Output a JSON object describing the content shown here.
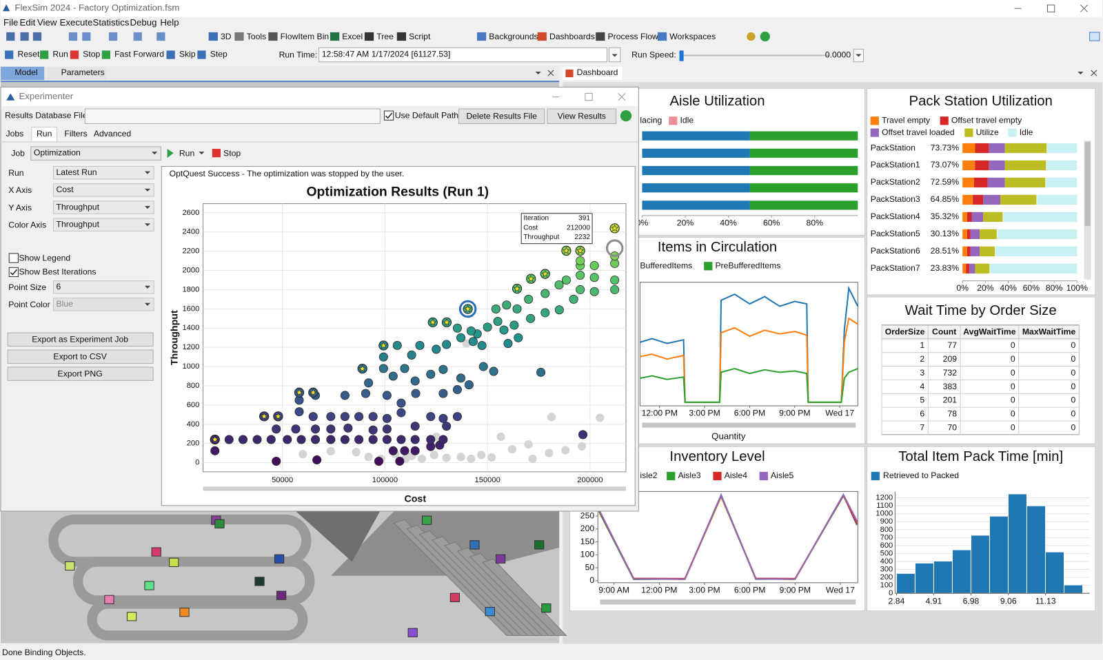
{
  "window": {
    "title": "FlexSim 2024 - Factory Optimization.fsm"
  },
  "menu": [
    "File",
    "Edit",
    "View",
    "Execute",
    "Statistics",
    "Debug",
    "Help"
  ],
  "toolbar": [
    "3D",
    "Tools",
    "FlowItem Bin",
    "Excel",
    "Tree",
    "Script",
    "Backgrounds",
    "Dashboards",
    "Process Flow",
    "Workspaces"
  ],
  "run_bar": {
    "buttons": [
      "Reset",
      "Run",
      "Stop",
      "Fast Forward",
      "Skip",
      "Step"
    ],
    "run_time_label": "Run Time:",
    "run_time": "12:58:47 AM  1/17/2024  [61127.53]",
    "run_speed_label": "Run Speed:",
    "run_speed": "0.0000"
  },
  "view_tabs": [
    "Model",
    "Parameters"
  ],
  "dashboard_tab": "Dashboard",
  "experimenter": {
    "title": "Experimenter",
    "db_label": "Results Database File",
    "use_default_path": {
      "label": "Use Default Path",
      "checked": true
    },
    "delete_button": "Delete Results File",
    "view_button": "View Results",
    "tabs": [
      "Jobs",
      "Run",
      "Filters",
      "Advanced"
    ],
    "job": {
      "label": "Job",
      "value": "Optimization"
    },
    "run": "Run",
    "stop": "Stop",
    "fields": [
      {
        "label": "Run",
        "value": "Latest Run"
      },
      {
        "label": "X Axis",
        "value": "Cost"
      },
      {
        "label": "Y Axis",
        "value": "Throughput"
      },
      {
        "label": "Color Axis",
        "value": "Throughput"
      }
    ],
    "checkboxes": [
      {
        "label": "Show Legend",
        "checked": false
      },
      {
        "label": "Show Best Iterations",
        "checked": true
      }
    ],
    "point_fields": [
      {
        "label": "Point Size",
        "value": "6"
      },
      {
        "label": "Point Color",
        "value": "Blue"
      }
    ],
    "exports": [
      "Export as Experiment Job",
      "Export to CSV",
      "Export PNG"
    ],
    "message": "OptQuest Success - The optimization was stopped by the user."
  },
  "chart_data": [
    {
      "type": "scatter",
      "title": "Optimization Results (Run 1)",
      "x_label": "Cost",
      "y_label": "Throughput",
      "xlim": [
        11300,
        217500
      ],
      "ylim": [
        -95,
        2695
      ],
      "xticks": [
        50000,
        100000,
        150000,
        200000
      ],
      "yticks": [
        0,
        200,
        400,
        600,
        800,
        1000,
        1200,
        1400,
        1600,
        1800,
        2000,
        2200,
        2400,
        2600
      ],
      "grid": true,
      "color_scale": [
        "#440154",
        "#3b528b",
        "#21918c",
        "#5ec962",
        "#fde725"
      ],
      "series": [
        {
          "x": [
            17100,
            47000,
            66800,
            97000,
            107200,
            104000,
            109600,
            114700,
            122300,
            126700,
            24000,
            30800,
            37700,
            44500,
            52400,
            59200,
            66100,
            73600,
            80500,
            87300,
            94200,
            101000,
            107900,
            114700,
            122300,
            128400,
            196500,
            47000,
            56500,
            66100,
            73600,
            82000,
            94200,
            101000,
            114700,
            130000,
            58200,
            65000,
            73600,
            80500,
            87300,
            94200,
            101000,
            107900,
            122300,
            128400,
            135300,
            58200,
            66100,
            80500,
            90600,
            101000,
            107900,
            115000,
            128400,
            135300,
            92000,
            99300,
            104000,
            109600,
            114700,
            122300,
            128400,
            137000,
            141000,
            148000,
            153000,
            176000,
            99300,
            106000,
            113000,
            117000,
            125000,
            130000,
            137000,
            143000,
            147300,
            145000,
            160000,
            135300,
            142000,
            150000,
            158000,
            165000,
            155000,
            163000,
            171000,
            154100,
            159300,
            164400,
            170000,
            178100,
            185000,
            192000,
            178100,
            184900,
            188400,
            195200,
            195200,
            202100,
            202100,
            212000,
            212000,
            195200,
            195200,
            202100,
            212000,
            212000
          ],
          "y": [
            124,
            15,
            29,
            15,
            15,
            124,
            124,
            124,
            168,
            183,
            241,
            241,
            241,
            241,
            241,
            241,
            241,
            241,
            241,
            241,
            241,
            241,
            241,
            241,
            241,
            241,
            292,
            350,
            350,
            350,
            350,
            360,
            340,
            350,
            380,
            380,
            530,
            480,
            480,
            480,
            480,
            480,
            460,
            520,
            480,
            460,
            480,
            650,
            700,
            700,
            720,
            700,
            620,
            720,
            720,
            760,
            830,
            980,
            900,
            980,
            850,
            920,
            970,
            880,
            810,
            1000,
            950,
            940,
            1100,
            1220,
            1120,
            1220,
            1180,
            1230,
            1300,
            1260,
            1219,
            1340,
            1240,
            1400,
            1370,
            1410,
            1380,
            1300,
            1470,
            1430,
            1500,
            1599,
            1640,
            1600,
            1700,
            1560,
            1590,
            1700,
            1760,
            1850,
            1900,
            1800,
            1950,
            1780,
            1927,
            1800,
            1900,
            2050,
            2100,
            2050,
            2073,
            2150
          ]
        },
        {
          "color": "#d4d4d4",
          "x": [
            92000,
            98000,
            105000,
            110000,
            113000,
            118000,
            124000,
            130000,
            137000,
            142000,
            147000,
            152000,
            162000,
            170000,
            172000,
            180000,
            188000,
            196000,
            181200,
            204800,
            139700,
            156500,
            125000,
            73600,
            86000,
            60000
          ],
          "y": [
            60,
            40,
            90,
            40,
            70,
            40,
            80,
            50,
            60,
            40,
            80,
            55,
            140,
            190,
            40,
            100,
            130,
            170,
            475,
            467,
            1241,
            270,
            270,
            120,
            110,
            90
          ]
        }
      ],
      "best": {
        "color": "#f5e829",
        "x": [
          17100,
          41100,
          47900,
          58200,
          65000,
          89000,
          99300,
          123300,
          130100,
          140400,
          164400,
          171200,
          178100,
          188400,
          195200,
          212000
        ],
        "y": [
          241,
          482,
          482,
          730,
          730,
          978,
          1219,
          1460,
          1460,
          1599,
          1810,
          1913,
          1964,
          2205,
          2205,
          2438
        ]
      },
      "selected": {
        "colors": [
          "#2a6db5",
          "#8c8c8c"
        ],
        "x": [
          140400,
          212000
        ],
        "y": [
          1599,
          2232
        ]
      },
      "tooltip": {
        "labels": [
          "Iteration",
          "Cost",
          "Throughput"
        ],
        "values": [
          391,
          212000,
          2232
        ]
      }
    },
    {
      "type": "hbar-stacked",
      "title": "Aisle Utilization",
      "xlim": [
        0,
        100
      ],
      "xticks": [
        {
          "value": 0,
          "label": "0%"
        },
        {
          "value": 20,
          "label": "20%"
        },
        {
          "value": 40,
          "label": "40%"
        },
        {
          "value": 60,
          "label": "60%"
        },
        {
          "value": 80,
          "label": "80%"
        }
      ],
      "series": [
        {
          "color": "#1f77b4",
          "values": [
            50,
            50,
            50,
            50,
            50
          ]
        },
        {
          "name": "lacing",
          "color": "#2ca02c",
          "values": [
            50,
            50,
            50,
            50,
            50
          ]
        },
        {
          "name": "Idle",
          "color": "#ec8f96",
          "values": [
            0,
            0,
            0,
            0,
            0
          ]
        }
      ]
    },
    {
      "type": "hbar-stacked",
      "title": "Pack Station Utilization",
      "categories": [
        "PackStation",
        "PackStation1",
        "PackStation2",
        "PackStation3",
        "PackStation4",
        "PackStation5",
        "PackStation6",
        "PackStation7"
      ],
      "values": [
        73.73,
        73.07,
        72.59,
        64.85,
        35.32,
        30.13,
        28.51,
        23.83
      ],
      "value_labels": [
        "73.73%",
        "73.07%",
        "72.59%",
        "64.85%",
        "35.32%",
        "30.13%",
        "28.51%",
        "23.83%"
      ],
      "xlim": [
        0,
        100
      ],
      "xticks": [
        {
          "value": 0,
          "label": "0%"
        },
        {
          "value": 20,
          "label": "20%"
        },
        {
          "value": 40,
          "label": "40%"
        },
        {
          "value": 60,
          "label": "60%"
        },
        {
          "value": 80,
          "label": "80%"
        },
        {
          "value": 100,
          "label": "100%"
        }
      ],
      "series": [
        {
          "name": "Travel empty",
          "color": "#ff7f0e",
          "values": [
            11,
            11,
            10,
            9,
            4,
            4,
            4,
            3
          ]
        },
        {
          "name": "Offset travel empty",
          "color": "#d62728",
          "values": [
            12,
            12,
            12,
            9,
            4,
            3,
            3,
            3
          ]
        },
        {
          "name": "Offset travel loaded",
          "color": "#9467bd",
          "values": [
            14,
            14,
            15,
            15,
            10,
            8,
            8,
            5
          ]
        },
        {
          "name": "Utilize",
          "color": "#bcbd22",
          "values": [
            36.73,
            36.07,
            35.59,
            31.85,
            17.32,
            15.13,
            13.51,
            12.83
          ]
        },
        {
          "name": "Idle",
          "color": "#c9f1f4",
          "values": [
            26.3,
            26.9,
            27.4,
            35.2,
            64.7,
            69.9,
            71.5,
            76.2
          ]
        }
      ]
    },
    {
      "type": "line",
      "title": "Items in Circulation",
      "x_label": "Quantity",
      "xlim": [
        10.7,
        25.2
      ],
      "ylim": [
        -3,
        100
      ],
      "xticks": [
        {
          "value": 12,
          "label": "12:00 PM"
        },
        {
          "value": 15,
          "label": "3:00 PM"
        },
        {
          "value": 18,
          "label": "6:00 PM"
        },
        {
          "value": 21,
          "label": "9:00 PM"
        },
        {
          "value": 24,
          "label": "Wed 17"
        }
      ],
      "x": [
        10.7,
        11.5,
        12.5,
        13.6,
        13.7,
        15.0,
        16.0,
        16.1,
        17,
        18,
        19,
        20,
        21,
        21.8,
        21.9,
        23,
        24.1,
        24.3,
        24.6,
        25.2
      ],
      "series": [
        {
          "color": "#1f77b4",
          "values": [
            50,
            53,
            49,
            52,
            0,
            0,
            0,
            85,
            90,
            82,
            88,
            80,
            84,
            82,
            0,
            0,
            0,
            60,
            95,
            80
          ]
        },
        {
          "name": "BufferedItems",
          "color": "#ff7f0e",
          "values": [
            38,
            40,
            36,
            39,
            0,
            0,
            0,
            58,
            62,
            55,
            60,
            57,
            59,
            56,
            0,
            0,
            0,
            50,
            70,
            65
          ]
        },
        {
          "name": "PreBufferedItems",
          "color": "#2ca02c",
          "values": [
            20,
            22,
            19,
            21,
            0,
            0,
            0,
            25,
            28,
            24,
            27,
            25,
            26,
            24,
            0,
            0,
            0,
            20,
            25,
            28
          ]
        }
      ]
    },
    {
      "type": "line",
      "title": "Inventory Level",
      "xlim": [
        7.93,
        25.16
      ],
      "ylim": [
        -8,
        345
      ],
      "yticks": [
        0,
        50,
        100,
        150,
        200,
        250
      ],
      "xticks": [
        {
          "value": 9,
          "label": "9:00 AM"
        },
        {
          "value": 12,
          "label": "12:00 PM"
        },
        {
          "value": 15,
          "label": "3:00 PM"
        },
        {
          "value": 18,
          "label": "6:00 PM"
        },
        {
          "value": 21,
          "label": "9:00 PM"
        },
        {
          "value": 24,
          "label": "Wed 17"
        }
      ],
      "x": [
        8.0,
        10.3,
        13.7,
        16.1,
        18.4,
        21.0,
        24.2,
        25.1
      ],
      "series": [
        {
          "color": "#1f77b4",
          "values": [
            270,
            6,
            6,
            332,
            6,
            6,
            332,
            215
          ]
        },
        {
          "name": "isle2",
          "color": "#ff7f0e",
          "values": [
            275,
            8,
            5,
            325,
            8,
            5,
            330,
            225
          ]
        },
        {
          "name": "Aisle3",
          "color": "#2ca02c",
          "values": [
            268,
            5,
            7,
            328,
            6,
            7,
            328,
            228
          ]
        },
        {
          "name": "Aisle4",
          "color": "#d62728",
          "values": [
            272,
            9,
            8,
            330,
            9,
            8,
            331,
            220
          ]
        },
        {
          "name": "Aisle5",
          "color": "#9467bd",
          "values": [
            276,
            7,
            6,
            331,
            7,
            6,
            333,
            232
          ]
        }
      ]
    },
    {
      "type": "histogram",
      "title": "Total Item Pack Time [min]",
      "legend": "Retrieved to Packed",
      "color": "#1f77b4",
      "bins": [
        2.84,
        3.875,
        4.91,
        5.945,
        6.98,
        8.015,
        9.05,
        10.085,
        11.12,
        12.155,
        13.19
      ],
      "values": [
        250,
        380,
        405,
        547,
        730,
        970,
        1250,
        1100,
        520,
        105
      ],
      "xlim": [
        2.76,
        13.58
      ],
      "xticks": [
        2.84,
        4.91,
        6.98,
        9.06,
        11.13
      ],
      "ylim": [
        0,
        1280
      ],
      "yticks": [
        0,
        100,
        200,
        300,
        400,
        500,
        600,
        700,
        800,
        900,
        1000,
        1100,
        1200
      ]
    }
  ],
  "wait_table": {
    "title": "Wait Time by Order Size",
    "headers": [
      "OrderSize",
      "Count",
      "AvgWaitTime",
      "MaxWaitTime"
    ],
    "rows": [
      [
        1,
        77,
        0,
        0
      ],
      [
        2,
        209,
        0,
        0
      ],
      [
        3,
        732,
        0,
        0
      ],
      [
        4,
        383,
        0,
        0
      ],
      [
        5,
        201,
        0,
        0
      ],
      [
        6,
        78,
        0,
        0
      ],
      [
        7,
        70,
        0,
        0
      ]
    ]
  },
  "status_bar": "Done Binding Objects."
}
